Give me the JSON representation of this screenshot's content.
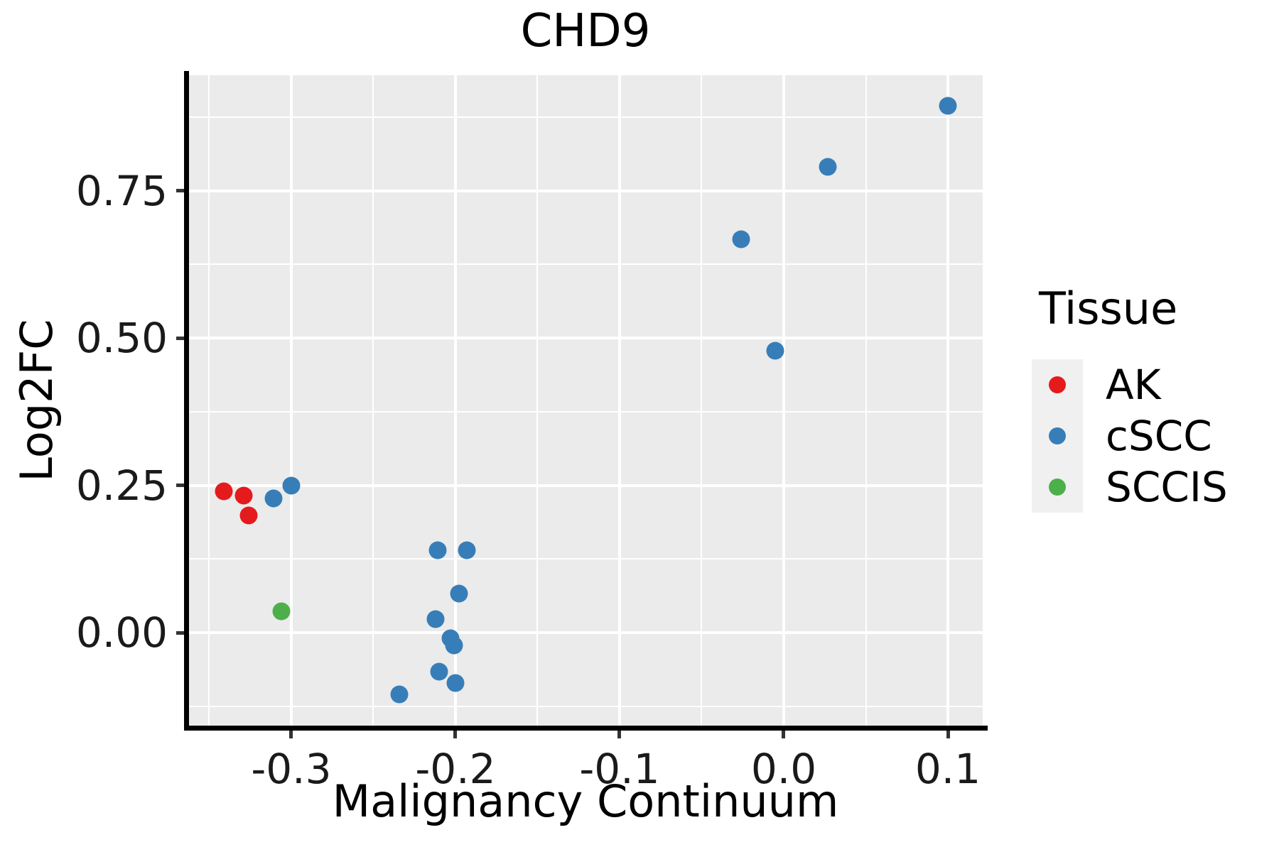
{
  "title": "CHD9",
  "colors": {
    "panel_bg": "#EBEBEB",
    "grid": "#FFFFFF",
    "axis_line": "#000000",
    "tick_mark": "#333333",
    "tick_label": "#1A1A1A",
    "legend_key_bg": "#F0F0F0",
    "ak_red": "#E41A1C",
    "cscc_blue": "#377EB8",
    "sccis_green": "#4DAF4A"
  },
  "legend": {
    "title": "Tissue",
    "items": [
      {
        "label": "AK",
        "color": "#E41A1C"
      },
      {
        "label": "cSCC",
        "color": "#377EB8"
      },
      {
        "label": "SCCIS",
        "color": "#4DAF4A"
      }
    ]
  },
  "chart_data": {
    "type": "scatter",
    "title": "CHD9",
    "xlabel": "Malignancy Continuum",
    "ylabel": "Log2FC",
    "xlim": [
      -0.3623,
      0.1212
    ],
    "ylim": [
      -0.1578,
      0.9458
    ],
    "x_major_ticks": [
      -0.3,
      -0.2,
      -0.1,
      0.0,
      0.1
    ],
    "x_tick_labels": [
      "-0.3",
      "-0.2",
      "-0.1",
      "0.0",
      "0.1"
    ],
    "x_minor_ticks": [
      -0.35,
      -0.25,
      -0.15,
      -0.05,
      0.05
    ],
    "y_major_ticks": [
      0.0,
      0.25,
      0.5,
      0.75
    ],
    "y_tick_labels": [
      "0.00",
      "0.25",
      "0.50",
      "0.75"
    ],
    "y_minor_ticks": [
      -0.125,
      0.125,
      0.375,
      0.625,
      0.875
    ],
    "grid": "white major+minor gridlines on grey panel",
    "legend_position": "right",
    "point_radius_px": 12.5,
    "series": [
      {
        "name": "AK",
        "color": "#E41A1C",
        "points": [
          [
            -0.341,
            0.24
          ],
          [
            -0.329,
            0.233
          ],
          [
            -0.326,
            0.199
          ]
        ]
      },
      {
        "name": "cSCC",
        "color": "#377EB8",
        "points": [
          [
            -0.311,
            0.228
          ],
          [
            -0.3,
            0.249
          ],
          [
            -0.234,
            -0.105
          ],
          [
            -0.212,
            0.023
          ],
          [
            -0.211,
            0.14
          ],
          [
            -0.21,
            -0.066
          ],
          [
            -0.203,
            -0.01
          ],
          [
            -0.201,
            -0.022
          ],
          [
            -0.2,
            -0.086
          ],
          [
            -0.198,
            0.066
          ],
          [
            -0.193,
            0.14
          ],
          [
            -0.026,
            0.667
          ],
          [
            -0.005,
            0.478
          ],
          [
            0.027,
            0.79
          ],
          [
            0.1,
            0.894
          ]
        ]
      },
      {
        "name": "SCCIS",
        "color": "#4DAF4A",
        "points": [
          [
            -0.306,
            0.036
          ]
        ]
      }
    ]
  }
}
